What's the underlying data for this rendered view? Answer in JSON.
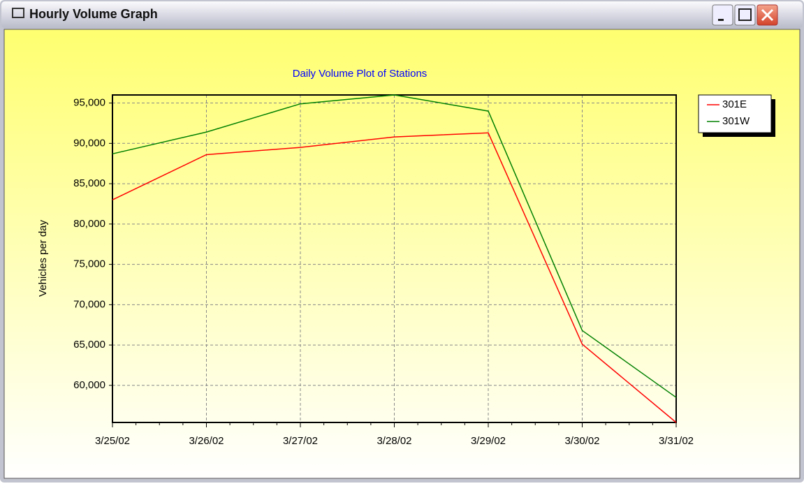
{
  "window": {
    "title": "Hourly Volume Graph"
  },
  "chart_data": {
    "type": "line",
    "title": "Daily Volume Plot of Stations",
    "y_label": "Vehicles per day",
    "categories": [
      "3/25/02",
      "3/26/02",
      "3/27/02",
      "3/28/02",
      "3/29/02",
      "3/30/02",
      "3/31/02"
    ],
    "series": [
      {
        "name": "301E",
        "color": "#ff0000",
        "values": [
          83000,
          88600,
          89500,
          90800,
          91300,
          65100,
          55400
        ]
      },
      {
        "name": "301W",
        "color": "#008000",
        "values": [
          88700,
          91400,
          94900,
          96000,
          94000,
          66800,
          58500
        ]
      }
    ],
    "ylim": [
      55400,
      96000
    ],
    "yticks": [
      {
        "value": 60000,
        "label": "60,000"
      },
      {
        "value": 65000,
        "label": "65,000"
      },
      {
        "value": 70000,
        "label": "70,000"
      },
      {
        "value": 75000,
        "label": "75,000"
      },
      {
        "value": 80000,
        "label": "80,000"
      },
      {
        "value": 85000,
        "label": "85,000"
      },
      {
        "value": 90000,
        "label": "90,000"
      },
      {
        "value": 95000,
        "label": "95,000"
      }
    ],
    "grid": true,
    "legend": "upper right"
  }
}
